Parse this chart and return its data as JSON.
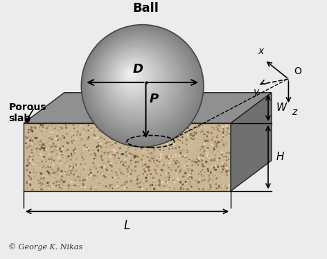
{
  "bg_color": "#ececec",
  "title": "Ball",
  "copyright": "© George K. Nikas",
  "label_porous": "Porous\nslab",
  "label_D": "D",
  "label_P": "P",
  "label_H": "H",
  "label_W": "W",
  "label_L": "L",
  "label_x": "x",
  "label_y": "y",
  "label_z": "z",
  "label_O": "O",
  "sandy_base": "#c8b898",
  "sandy_dots": [
    "#8b7355",
    "#d2b48c",
    "#a0785a",
    "#c4a882",
    "#6b5040",
    "#e8d5b0",
    "#b8a070",
    "#987850"
  ],
  "gray_top": "#909090",
  "gray_right": "#707070",
  "slab_edge": "#222222"
}
